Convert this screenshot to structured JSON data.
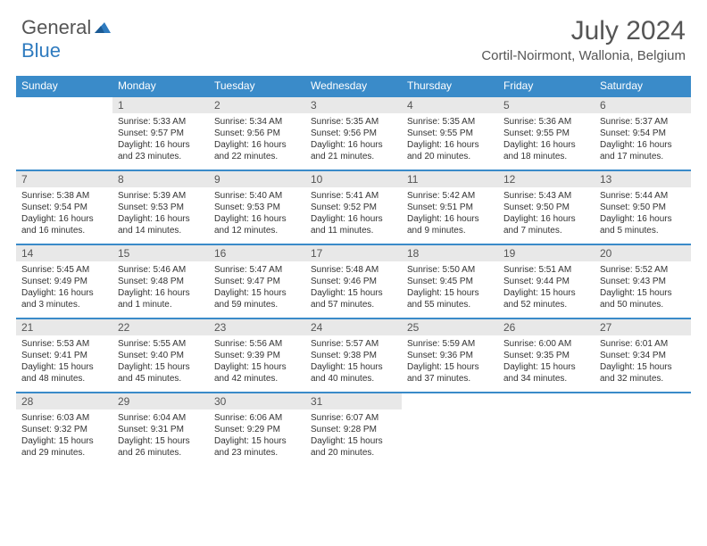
{
  "brand": {
    "word1": "General",
    "word2": "Blue"
  },
  "title": "July 2024",
  "location": "Cortil-Noirmont, Wallonia, Belgium",
  "colors": {
    "header_bg": "#3a8bc9",
    "header_text": "#ffffff",
    "day_bg": "#e8e8e8",
    "border": "#3a8bc9",
    "text": "#333333",
    "title_text": "#555555",
    "brand_blue": "#2f7bbf"
  },
  "weekdays": [
    "Sunday",
    "Monday",
    "Tuesday",
    "Wednesday",
    "Thursday",
    "Friday",
    "Saturday"
  ],
  "weeks": [
    [
      null,
      {
        "n": "1",
        "sr": "Sunrise: 5:33 AM",
        "ss": "Sunset: 9:57 PM",
        "dl1": "Daylight: 16 hours",
        "dl2": "and 23 minutes."
      },
      {
        "n": "2",
        "sr": "Sunrise: 5:34 AM",
        "ss": "Sunset: 9:56 PM",
        "dl1": "Daylight: 16 hours",
        "dl2": "and 22 minutes."
      },
      {
        "n": "3",
        "sr": "Sunrise: 5:35 AM",
        "ss": "Sunset: 9:56 PM",
        "dl1": "Daylight: 16 hours",
        "dl2": "and 21 minutes."
      },
      {
        "n": "4",
        "sr": "Sunrise: 5:35 AM",
        "ss": "Sunset: 9:55 PM",
        "dl1": "Daylight: 16 hours",
        "dl2": "and 20 minutes."
      },
      {
        "n": "5",
        "sr": "Sunrise: 5:36 AM",
        "ss": "Sunset: 9:55 PM",
        "dl1": "Daylight: 16 hours",
        "dl2": "and 18 minutes."
      },
      {
        "n": "6",
        "sr": "Sunrise: 5:37 AM",
        "ss": "Sunset: 9:54 PM",
        "dl1": "Daylight: 16 hours",
        "dl2": "and 17 minutes."
      }
    ],
    [
      {
        "n": "7",
        "sr": "Sunrise: 5:38 AM",
        "ss": "Sunset: 9:54 PM",
        "dl1": "Daylight: 16 hours",
        "dl2": "and 16 minutes."
      },
      {
        "n": "8",
        "sr": "Sunrise: 5:39 AM",
        "ss": "Sunset: 9:53 PM",
        "dl1": "Daylight: 16 hours",
        "dl2": "and 14 minutes."
      },
      {
        "n": "9",
        "sr": "Sunrise: 5:40 AM",
        "ss": "Sunset: 9:53 PM",
        "dl1": "Daylight: 16 hours",
        "dl2": "and 12 minutes."
      },
      {
        "n": "10",
        "sr": "Sunrise: 5:41 AM",
        "ss": "Sunset: 9:52 PM",
        "dl1": "Daylight: 16 hours",
        "dl2": "and 11 minutes."
      },
      {
        "n": "11",
        "sr": "Sunrise: 5:42 AM",
        "ss": "Sunset: 9:51 PM",
        "dl1": "Daylight: 16 hours",
        "dl2": "and 9 minutes."
      },
      {
        "n": "12",
        "sr": "Sunrise: 5:43 AM",
        "ss": "Sunset: 9:50 PM",
        "dl1": "Daylight: 16 hours",
        "dl2": "and 7 minutes."
      },
      {
        "n": "13",
        "sr": "Sunrise: 5:44 AM",
        "ss": "Sunset: 9:50 PM",
        "dl1": "Daylight: 16 hours",
        "dl2": "and 5 minutes."
      }
    ],
    [
      {
        "n": "14",
        "sr": "Sunrise: 5:45 AM",
        "ss": "Sunset: 9:49 PM",
        "dl1": "Daylight: 16 hours",
        "dl2": "and 3 minutes."
      },
      {
        "n": "15",
        "sr": "Sunrise: 5:46 AM",
        "ss": "Sunset: 9:48 PM",
        "dl1": "Daylight: 16 hours",
        "dl2": "and 1 minute."
      },
      {
        "n": "16",
        "sr": "Sunrise: 5:47 AM",
        "ss": "Sunset: 9:47 PM",
        "dl1": "Daylight: 15 hours",
        "dl2": "and 59 minutes."
      },
      {
        "n": "17",
        "sr": "Sunrise: 5:48 AM",
        "ss": "Sunset: 9:46 PM",
        "dl1": "Daylight: 15 hours",
        "dl2": "and 57 minutes."
      },
      {
        "n": "18",
        "sr": "Sunrise: 5:50 AM",
        "ss": "Sunset: 9:45 PM",
        "dl1": "Daylight: 15 hours",
        "dl2": "and 55 minutes."
      },
      {
        "n": "19",
        "sr": "Sunrise: 5:51 AM",
        "ss": "Sunset: 9:44 PM",
        "dl1": "Daylight: 15 hours",
        "dl2": "and 52 minutes."
      },
      {
        "n": "20",
        "sr": "Sunrise: 5:52 AM",
        "ss": "Sunset: 9:43 PM",
        "dl1": "Daylight: 15 hours",
        "dl2": "and 50 minutes."
      }
    ],
    [
      {
        "n": "21",
        "sr": "Sunrise: 5:53 AM",
        "ss": "Sunset: 9:41 PM",
        "dl1": "Daylight: 15 hours",
        "dl2": "and 48 minutes."
      },
      {
        "n": "22",
        "sr": "Sunrise: 5:55 AM",
        "ss": "Sunset: 9:40 PM",
        "dl1": "Daylight: 15 hours",
        "dl2": "and 45 minutes."
      },
      {
        "n": "23",
        "sr": "Sunrise: 5:56 AM",
        "ss": "Sunset: 9:39 PM",
        "dl1": "Daylight: 15 hours",
        "dl2": "and 42 minutes."
      },
      {
        "n": "24",
        "sr": "Sunrise: 5:57 AM",
        "ss": "Sunset: 9:38 PM",
        "dl1": "Daylight: 15 hours",
        "dl2": "and 40 minutes."
      },
      {
        "n": "25",
        "sr": "Sunrise: 5:59 AM",
        "ss": "Sunset: 9:36 PM",
        "dl1": "Daylight: 15 hours",
        "dl2": "and 37 minutes."
      },
      {
        "n": "26",
        "sr": "Sunrise: 6:00 AM",
        "ss": "Sunset: 9:35 PM",
        "dl1": "Daylight: 15 hours",
        "dl2": "and 34 minutes."
      },
      {
        "n": "27",
        "sr": "Sunrise: 6:01 AM",
        "ss": "Sunset: 9:34 PM",
        "dl1": "Daylight: 15 hours",
        "dl2": "and 32 minutes."
      }
    ],
    [
      {
        "n": "28",
        "sr": "Sunrise: 6:03 AM",
        "ss": "Sunset: 9:32 PM",
        "dl1": "Daylight: 15 hours",
        "dl2": "and 29 minutes."
      },
      {
        "n": "29",
        "sr": "Sunrise: 6:04 AM",
        "ss": "Sunset: 9:31 PM",
        "dl1": "Daylight: 15 hours",
        "dl2": "and 26 minutes."
      },
      {
        "n": "30",
        "sr": "Sunrise: 6:06 AM",
        "ss": "Sunset: 9:29 PM",
        "dl1": "Daylight: 15 hours",
        "dl2": "and 23 minutes."
      },
      {
        "n": "31",
        "sr": "Sunrise: 6:07 AM",
        "ss": "Sunset: 9:28 PM",
        "dl1": "Daylight: 15 hours",
        "dl2": "and 20 minutes."
      },
      null,
      null,
      null
    ]
  ]
}
